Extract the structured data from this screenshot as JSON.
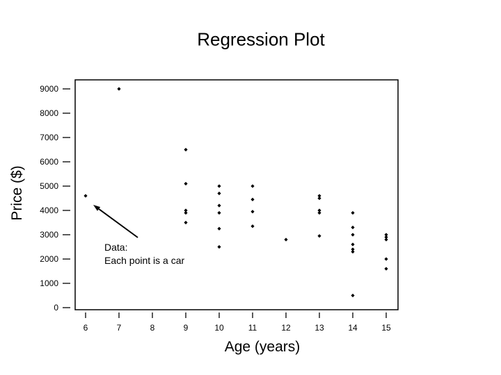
{
  "page": {
    "background_color": "#ffffff",
    "text_color": "#000000"
  },
  "chart_data": {
    "type": "scatter",
    "title": "Regression Plot",
    "xlabel": "Age (years)",
    "ylabel": "Price ($)",
    "x_ticks": [
      6,
      7,
      8,
      9,
      10,
      11,
      12,
      13,
      14,
      15
    ],
    "y_ticks": [
      0,
      1000,
      2000,
      3000,
      4000,
      5000,
      6000,
      7000,
      8000,
      9000
    ],
    "xlim": [
      5.7,
      15.35
    ],
    "ylim": [
      -100,
      9400
    ],
    "grid": false,
    "legend": "none",
    "marker": "diamond",
    "marker_color": "#000000",
    "frame_color": "#000000",
    "points": [
      {
        "x": 6,
        "y": 4600
      },
      {
        "x": 7,
        "y": 9000
      },
      {
        "x": 9,
        "y": 6500
      },
      {
        "x": 9,
        "y": 5100
      },
      {
        "x": 9,
        "y": 4000
      },
      {
        "x": 9,
        "y": 3900
      },
      {
        "x": 9,
        "y": 3500
      },
      {
        "x": 10,
        "y": 5000
      },
      {
        "x": 10,
        "y": 4700
      },
      {
        "x": 10,
        "y": 4200
      },
      {
        "x": 10,
        "y": 3900
      },
      {
        "x": 10,
        "y": 3250
      },
      {
        "x": 10,
        "y": 2500
      },
      {
        "x": 11,
        "y": 5000
      },
      {
        "x": 11,
        "y": 4450
      },
      {
        "x": 11,
        "y": 3950
      },
      {
        "x": 11,
        "y": 3350
      },
      {
        "x": 12,
        "y": 2800
      },
      {
        "x": 13,
        "y": 4600
      },
      {
        "x": 13,
        "y": 4500
      },
      {
        "x": 13,
        "y": 4000
      },
      {
        "x": 13,
        "y": 3900
      },
      {
        "x": 13,
        "y": 2950
      },
      {
        "x": 14,
        "y": 3900
      },
      {
        "x": 14,
        "y": 3300
      },
      {
        "x": 14,
        "y": 3000
      },
      {
        "x": 14,
        "y": 2600
      },
      {
        "x": 14,
        "y": 2400
      },
      {
        "x": 14,
        "y": 2300
      },
      {
        "x": 14,
        "y": 500
      },
      {
        "x": 15,
        "y": 3000
      },
      {
        "x": 15,
        "y": 2900
      },
      {
        "x": 15,
        "y": 2800
      },
      {
        "x": 15,
        "y": 2000
      },
      {
        "x": 15,
        "y": 1600
      }
    ],
    "annotation": {
      "line1": "Data:",
      "line2": "Each point is a car",
      "arrow_target_point": {
        "x": 6,
        "y": 4600
      }
    }
  }
}
